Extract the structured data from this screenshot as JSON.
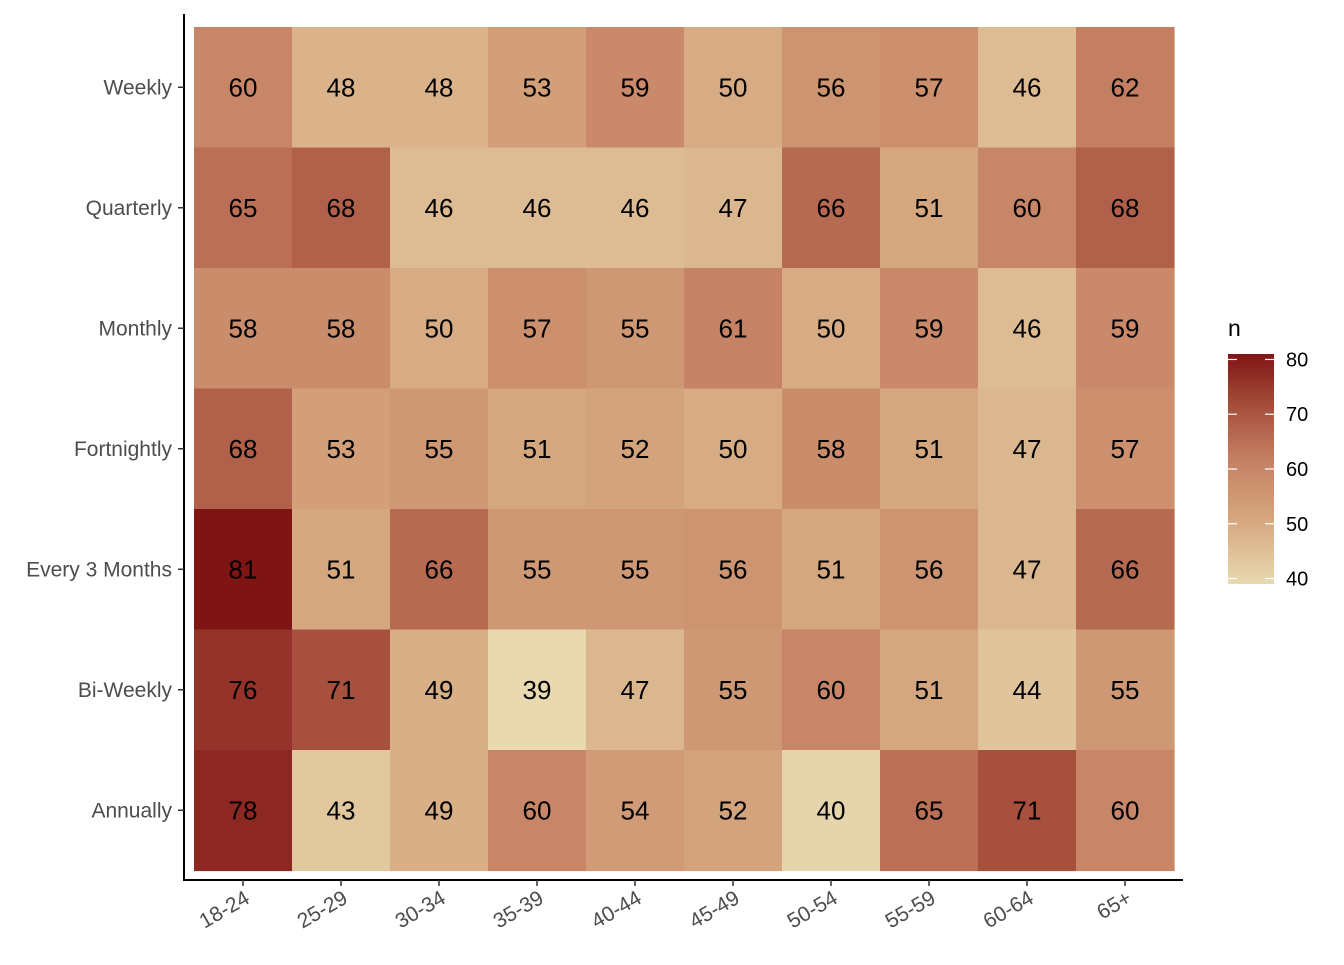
{
  "chart_data": {
    "type": "heatmap",
    "title": "",
    "xlabel": "",
    "ylabel": "",
    "x_categories": [
      "18-24",
      "25-29",
      "30-34",
      "35-39",
      "40-44",
      "45-49",
      "50-54",
      "55-59",
      "60-64",
      "65+"
    ],
    "y_categories": [
      "Weekly",
      "Quarterly",
      "Monthly",
      "Fortnightly",
      "Every 3 Months",
      "Bi-Weekly",
      "Annually"
    ],
    "values": [
      [
        60,
        48,
        48,
        53,
        59,
        50,
        56,
        57,
        46,
        62
      ],
      [
        65,
        68,
        46,
        46,
        46,
        47,
        66,
        51,
        60,
        68
      ],
      [
        58,
        58,
        50,
        57,
        55,
        61,
        50,
        59,
        46,
        59
      ],
      [
        68,
        53,
        55,
        51,
        52,
        50,
        58,
        51,
        47,
        57
      ],
      [
        81,
        51,
        66,
        55,
        55,
        56,
        51,
        56,
        47,
        66
      ],
      [
        76,
        71,
        49,
        39,
        47,
        55,
        60,
        51,
        44,
        55
      ],
      [
        78,
        43,
        49,
        60,
        54,
        52,
        40,
        65,
        71,
        60
      ]
    ],
    "color_scale": {
      "min": 39,
      "max": 81,
      "low_color": "#e8d9b0",
      "high_color": "#7f1414"
    },
    "legend": {
      "title": "n",
      "ticks": [
        "40",
        "50",
        "60",
        "70",
        "80"
      ],
      "placement": "right"
    }
  }
}
